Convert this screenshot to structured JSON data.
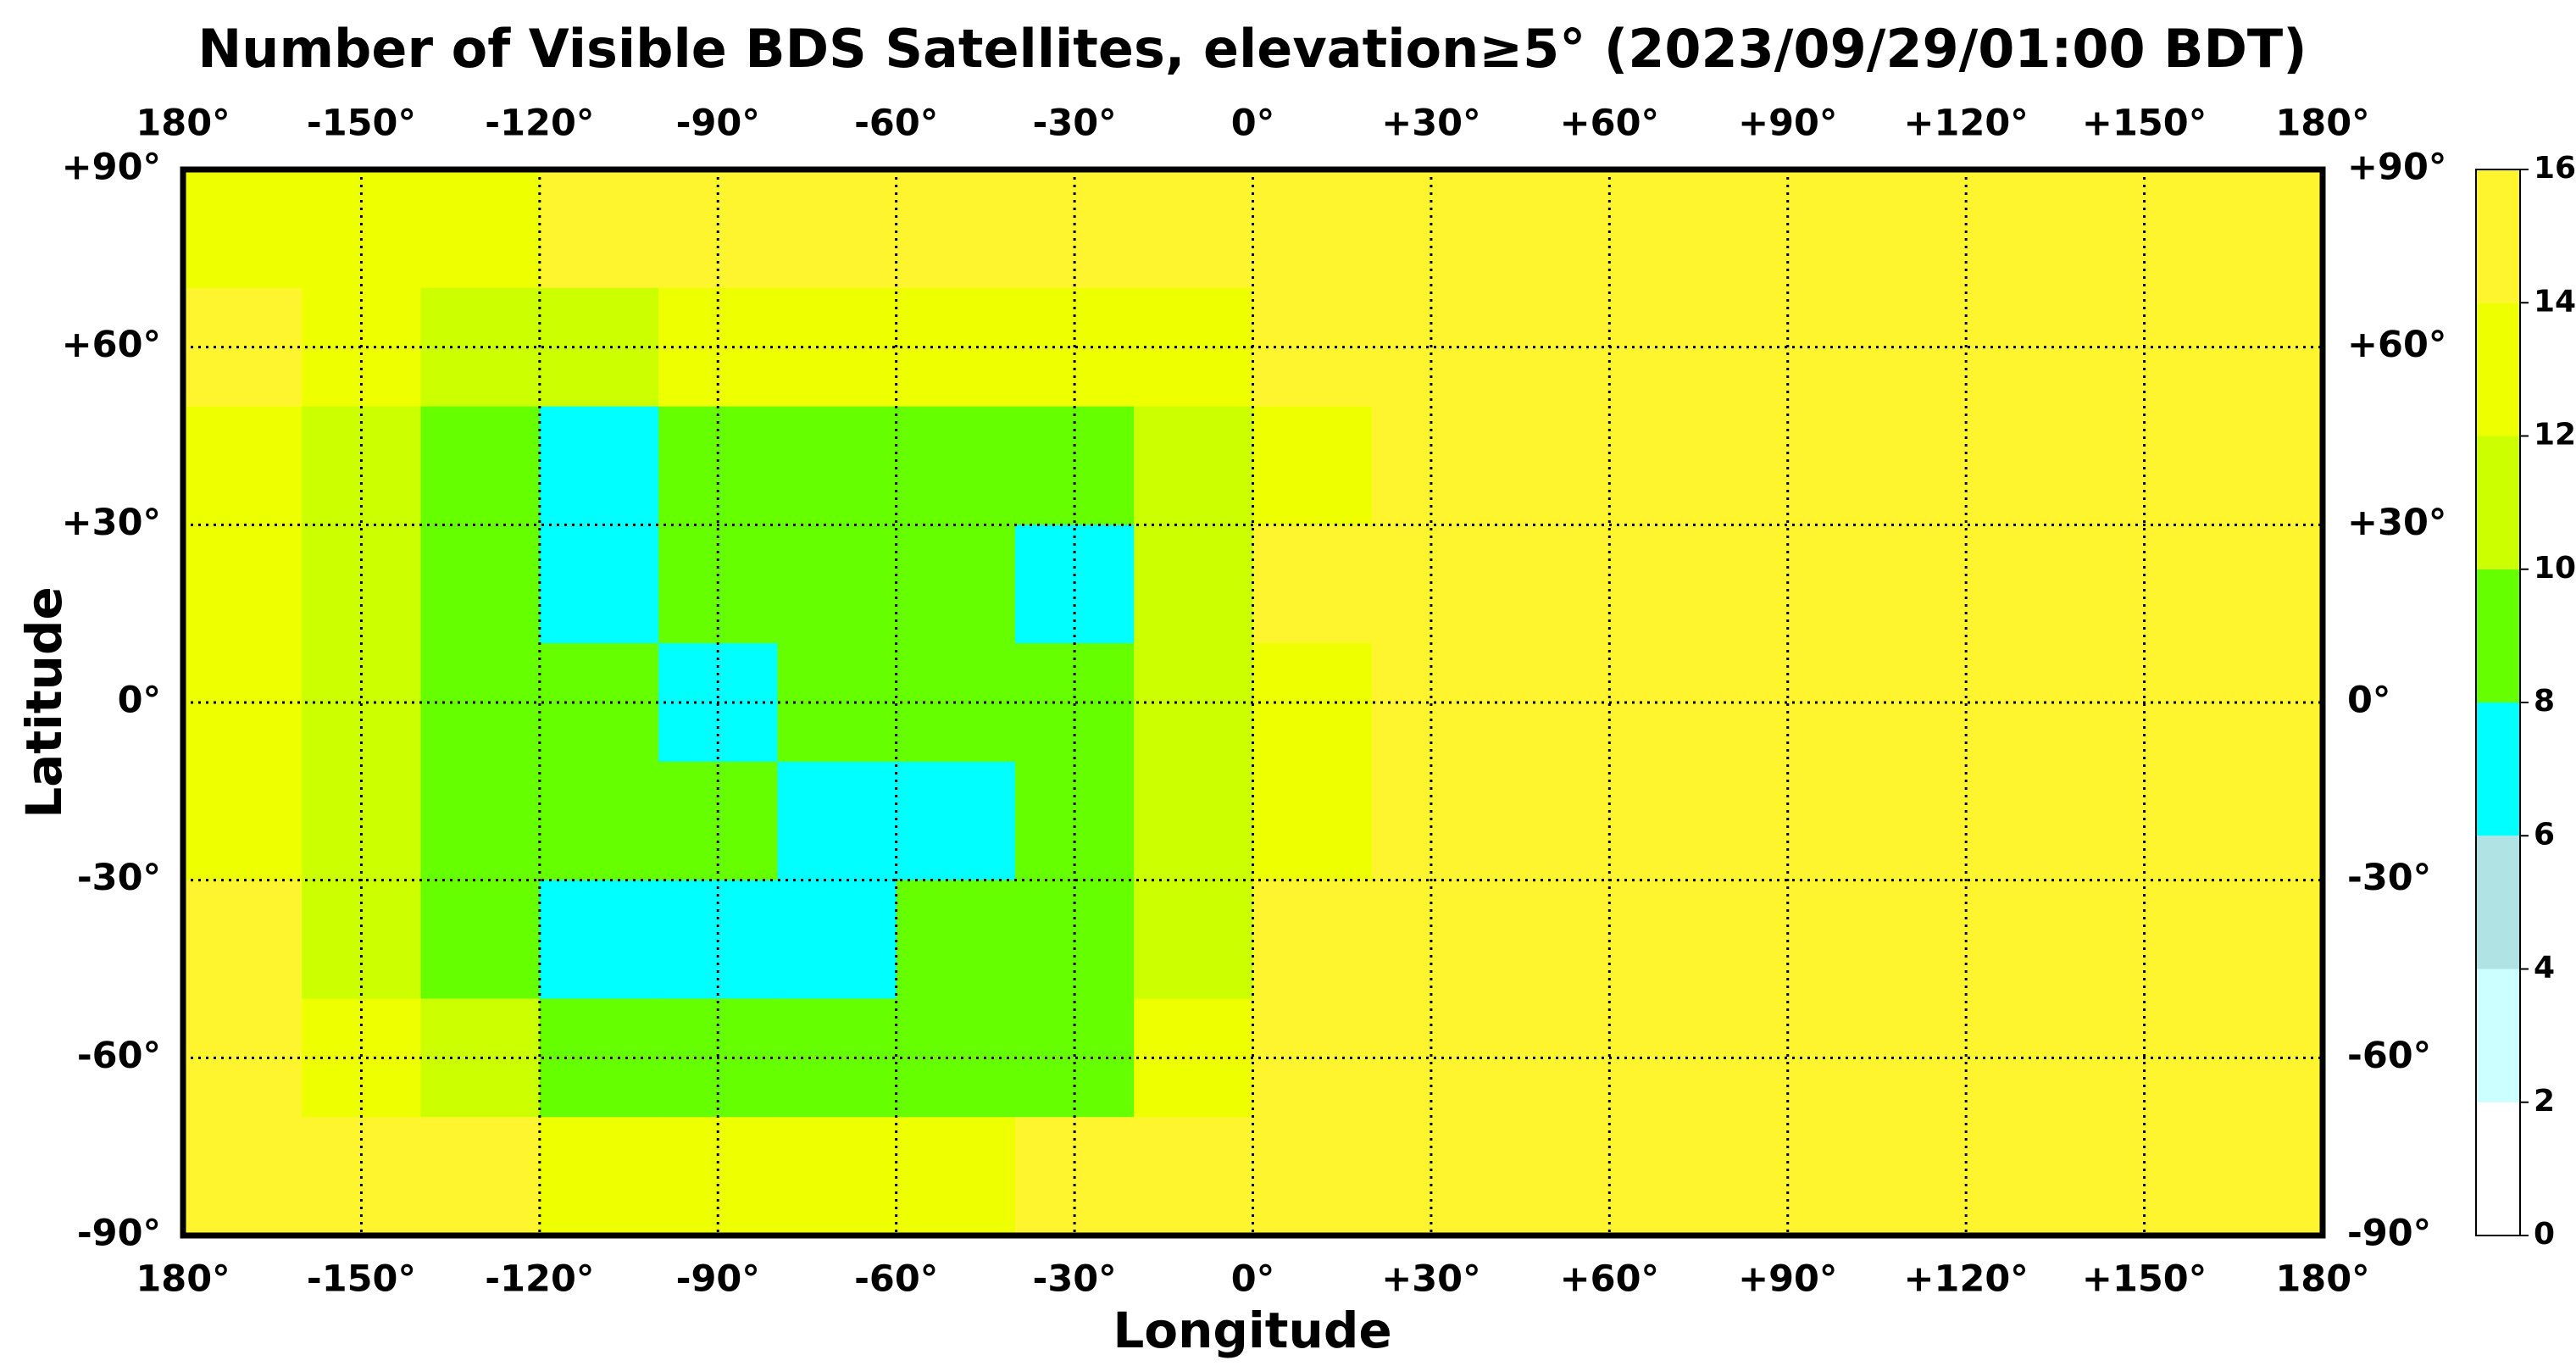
{
  "chart_data": {
    "type": "heatmap",
    "title": "Number of Visible BDS Satellites, elevation≥5° (2023/09/29/01:00 BDT)",
    "xlabel": "Longitude",
    "ylabel": "Latitude",
    "xlim": [
      -180,
      180
    ],
    "ylim": [
      -90,
      90
    ],
    "xticks": [
      {
        "value": -180,
        "label": "180°"
      },
      {
        "value": -150,
        "label": "-150°"
      },
      {
        "value": -120,
        "label": "-120°"
      },
      {
        "value": -90,
        "label": "-90°"
      },
      {
        "value": -60,
        "label": "-60°"
      },
      {
        "value": -30,
        "label": "-30°"
      },
      {
        "value": 0,
        "label": "0°"
      },
      {
        "value": 30,
        "label": "+30°"
      },
      {
        "value": 60,
        "label": "+60°"
      },
      {
        "value": 90,
        "label": "+90°"
      },
      {
        "value": 120,
        "label": "+120°"
      },
      {
        "value": 150,
        "label": "+150°"
      },
      {
        "value": 180,
        "label": "180°"
      }
    ],
    "yticks": [
      {
        "value": 90,
        "label": "+90°"
      },
      {
        "value": 60,
        "label": "+60°"
      },
      {
        "value": 30,
        "label": "+30°"
      },
      {
        "value": 0,
        "label": "0°"
      },
      {
        "value": -30,
        "label": "-30°"
      },
      {
        "value": -60,
        "label": "-60°"
      },
      {
        "value": -90,
        "label": "-90°"
      }
    ],
    "grid": true,
    "x": [
      -170,
      -150,
      -130,
      -110,
      -90,
      -70,
      -50,
      -30,
      -10,
      10,
      30,
      50,
      70,
      90,
      110,
      130,
      150,
      170
    ],
    "y": [
      80,
      60,
      40,
      20,
      0,
      -20,
      -40,
      -60,
      -80
    ],
    "values": [
      [
        13,
        13,
        13,
        15,
        15,
        15,
        15,
        15,
        15,
        15,
        15,
        15,
        15,
        15,
        15,
        15,
        15,
        15
      ],
      [
        15,
        13,
        11,
        11,
        13,
        13,
        13,
        13,
        13,
        15,
        15,
        15,
        15,
        15,
        15,
        15,
        15,
        15
      ],
      [
        13,
        11,
        9,
        7,
        9,
        9,
        9,
        9,
        11,
        13,
        15,
        15,
        15,
        15,
        15,
        15,
        15,
        15
      ],
      [
        13,
        11,
        9,
        7,
        9,
        9,
        9,
        7,
        11,
        15,
        15,
        15,
        15,
        15,
        15,
        15,
        15,
        15
      ],
      [
        13,
        11,
        9,
        9,
        7,
        9,
        9,
        9,
        11,
        13,
        15,
        15,
        15,
        15,
        15,
        15,
        15,
        15
      ],
      [
        13,
        11,
        9,
        9,
        9,
        7,
        7,
        9,
        11,
        13,
        15,
        15,
        15,
        15,
        15,
        15,
        15,
        15
      ],
      [
        15,
        11,
        9,
        7,
        7,
        7,
        9,
        9,
        11,
        15,
        15,
        15,
        15,
        15,
        15,
        15,
        15,
        15
      ],
      [
        15,
        13,
        11,
        9,
        9,
        9,
        9,
        9,
        13,
        15,
        15,
        15,
        15,
        15,
        15,
        15,
        15,
        15
      ],
      [
        15,
        15,
        15,
        13,
        13,
        13,
        13,
        15,
        15,
        15,
        15,
        15,
        15,
        15,
        15,
        15,
        15,
        15
      ]
    ],
    "colorbar": {
      "levels": [
        0,
        2,
        4,
        6,
        8,
        10,
        12,
        14,
        16
      ],
      "colors": [
        "#ffffff",
        "#ccffff",
        "#b0e4e4",
        "#00ffff",
        "#66ff00",
        "#ccff00",
        "#eeff00",
        "#fff52e"
      ]
    }
  }
}
